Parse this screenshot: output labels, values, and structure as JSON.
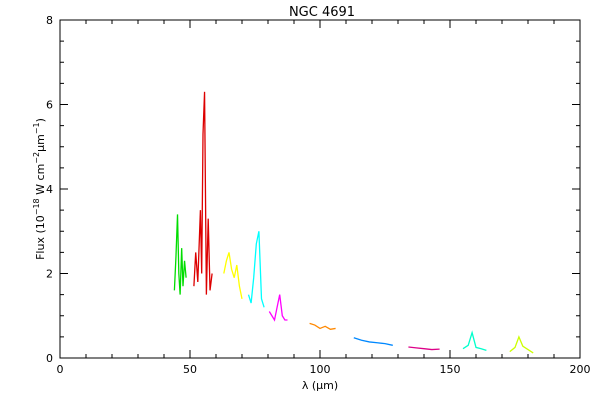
{
  "chart_data": {
    "type": "line",
    "title": "NGC 4691",
    "xlabel": "λ (μm)",
    "ylabel_parts": {
      "prefix": "Flux (10",
      "exp1": "−18",
      "middle": " W cm",
      "exp2": "−2",
      "unit": "μm",
      "exp3": "−1",
      "suffix": ")"
    },
    "xlim": [
      0,
      200
    ],
    "ylim": [
      0,
      8
    ],
    "x_ticks": [
      0,
      50,
      100,
      150,
      200
    ],
    "y_ticks": [
      0,
      2,
      4,
      6,
      8
    ],
    "grid": false,
    "series": [
      {
        "color": "#00dd00",
        "x": [
          44.0,
          44.6,
          45.2,
          45.7,
          46.2,
          46.8,
          47.3,
          47.9,
          48.5
        ],
        "y": [
          1.6,
          2.4,
          3.4,
          2.0,
          1.5,
          2.6,
          1.7,
          2.3,
          1.9
        ]
      },
      {
        "color": "#dd0000",
        "x": [
          51.5,
          52.2,
          53.0,
          54.0,
          54.5,
          55.0,
          55.6,
          56.3,
          57.0,
          57.7,
          58.5
        ],
        "y": [
          1.7,
          2.5,
          1.8,
          3.5,
          2.0,
          5.3,
          6.3,
          1.5,
          3.3,
          1.6,
          2.0
        ]
      },
      {
        "color": "#ffff00",
        "x": [
          63.0,
          64.0,
          65.0,
          66.0,
          67.0,
          68.0,
          69.0,
          70.0
        ],
        "y": [
          2.0,
          2.3,
          2.5,
          2.1,
          1.9,
          2.2,
          1.7,
          1.4
        ]
      },
      {
        "color": "#00ffff",
        "x": [
          72.5,
          73.5,
          74.5,
          75.5,
          76.5,
          77.5,
          78.5
        ],
        "y": [
          1.5,
          1.3,
          1.9,
          2.7,
          3.0,
          1.4,
          1.2
        ]
      },
      {
        "color": "#ff00ff",
        "x": [
          80.5,
          81.5,
          82.5,
          83.5,
          84.5,
          85.5,
          86.5,
          87.5
        ],
        "y": [
          1.1,
          1.0,
          0.9,
          1.2,
          1.5,
          1.0,
          0.9,
          0.9
        ]
      },
      {
        "color": "#ff8800",
        "x": [
          96.0,
          98.0,
          100.0,
          102.0,
          104.0,
          106.0
        ],
        "y": [
          0.82,
          0.78,
          0.7,
          0.75,
          0.68,
          0.7
        ]
      },
      {
        "color": "#0088ff",
        "x": [
          113.0,
          116.0,
          119.0,
          122.0,
          125.0,
          128.0
        ],
        "y": [
          0.48,
          0.42,
          0.38,
          0.36,
          0.34,
          0.3
        ]
      },
      {
        "color": "#dd0088",
        "x": [
          134.0,
          137.0,
          140.0,
          143.0,
          146.0
        ],
        "y": [
          0.26,
          0.24,
          0.22,
          0.2,
          0.21
        ]
      },
      {
        "color": "#00ffcc",
        "x": [
          155.0,
          157.0,
          158.5,
          160.0,
          162.0,
          164.0
        ],
        "y": [
          0.22,
          0.3,
          0.6,
          0.25,
          0.22,
          0.18
        ]
      },
      {
        "color": "#ccff00",
        "x": [
          173.0,
          175.0,
          176.5,
          178.0,
          180.0,
          182.0
        ],
        "y": [
          0.15,
          0.25,
          0.5,
          0.28,
          0.2,
          0.12
        ]
      }
    ]
  }
}
